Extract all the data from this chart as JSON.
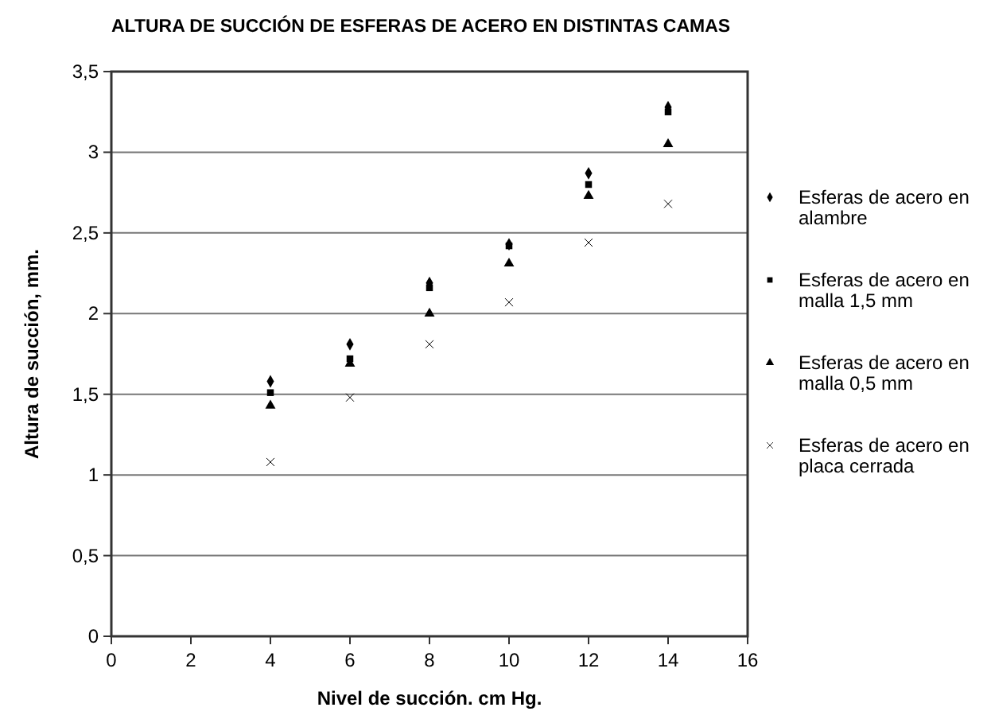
{
  "chart_data": {
    "type": "scatter",
    "title": "ALTURA DE SUCCIÓN DE ESFERAS DE ACERO EN DISTINTAS CAMAS",
    "xlabel": "Nivel de succión. cm Hg.",
    "ylabel": "Altura de succión, mm.",
    "x": [
      4,
      6,
      8,
      10,
      12,
      14
    ],
    "xlim": [
      0,
      16
    ],
    "xticks": [
      0,
      2,
      4,
      6,
      8,
      10,
      12,
      14,
      16
    ],
    "ylim": [
      0,
      3.5
    ],
    "yticks": [
      {
        "value": 0,
        "label": "0"
      },
      {
        "value": 0.5,
        "label": "0,5"
      },
      {
        "value": 1,
        "label": "1"
      },
      {
        "value": 1.5,
        "label": "1,5"
      },
      {
        "value": 2,
        "label": "2"
      },
      {
        "value": 2.5,
        "label": "2,5"
      },
      {
        "value": 3,
        "label": "3"
      },
      {
        "value": 3.5,
        "label": "3,5"
      }
    ],
    "grid": "y",
    "legend": "right",
    "series": [
      {
        "name": "Esferas de acero en alambre",
        "color": "#000000",
        "marker": "diamond",
        "values": [
          1.58,
          1.81,
          2.19,
          2.43,
          2.87,
          3.28
        ]
      },
      {
        "name": "Esferas de acero en malla 1,5 mm",
        "color": "#000000",
        "marker": "square",
        "values": [
          1.51,
          1.72,
          2.16,
          2.42,
          2.8,
          3.25
        ]
      },
      {
        "name": "Esferas de acero en malla 0,5 mm",
        "color": "#000000",
        "marker": "triangle",
        "values": [
          1.43,
          1.69,
          2.0,
          2.31,
          2.73,
          3.05
        ]
      },
      {
        "name": "Esferas de acero en placa cerrada",
        "color": "#000000",
        "marker": "cross",
        "values": [
          1.08,
          1.48,
          1.81,
          2.07,
          2.44,
          2.68
        ]
      }
    ]
  }
}
